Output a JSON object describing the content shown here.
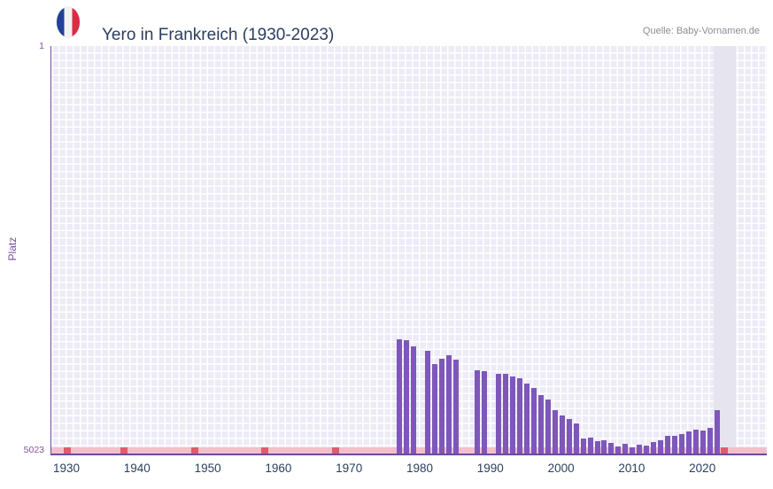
{
  "chart_data": {
    "type": "bar",
    "title": "Yero in Frankreich (1930-2023)",
    "source": "Quelle: Baby-Vornamen.de",
    "ylabel": "Platz",
    "y_axis": {
      "top_label": "1",
      "bottom_label": "5023",
      "min": 1,
      "max": 5023,
      "inverted": true
    },
    "x_ticks": [
      "1930",
      "1940",
      "1950",
      "1960",
      "1970",
      "1980",
      "1990",
      "2000",
      "2010",
      "2020"
    ],
    "x_range": [
      1927.75,
      2029
    ],
    "highlight_year": 2023,
    "no_data_marker_years": [
      1930,
      1938,
      1948,
      1958,
      1968,
      2023
    ],
    "grid": true,
    "legend": "none",
    "series": [
      {
        "year": 1977,
        "rank": 3610
      },
      {
        "year": 1978,
        "rank": 3630
      },
      {
        "year": 1979,
        "rank": 3700
      },
      {
        "year": 1981,
        "rank": 3760
      },
      {
        "year": 1982,
        "rank": 3915
      },
      {
        "year": 1983,
        "rank": 3860
      },
      {
        "year": 1984,
        "rank": 3810
      },
      {
        "year": 1985,
        "rank": 3870
      },
      {
        "year": 1988,
        "rank": 4000
      },
      {
        "year": 1989,
        "rank": 4010
      },
      {
        "year": 1991,
        "rank": 4040
      },
      {
        "year": 1992,
        "rank": 4045
      },
      {
        "year": 1993,
        "rank": 4070
      },
      {
        "year": 1994,
        "rank": 4100
      },
      {
        "year": 1995,
        "rank": 4160
      },
      {
        "year": 1996,
        "rank": 4215
      },
      {
        "year": 1997,
        "rank": 4300
      },
      {
        "year": 1998,
        "rank": 4360
      },
      {
        "year": 1999,
        "rank": 4490
      },
      {
        "year": 2000,
        "rank": 4550
      },
      {
        "year": 2001,
        "rank": 4600
      },
      {
        "year": 2002,
        "rank": 4655
      },
      {
        "year": 2003,
        "rank": 4840
      },
      {
        "year": 2004,
        "rank": 4830
      },
      {
        "year": 2005,
        "rank": 4870
      },
      {
        "year": 2006,
        "rank": 4860
      },
      {
        "year": 2007,
        "rank": 4890
      },
      {
        "year": 2008,
        "rank": 4940
      },
      {
        "year": 2009,
        "rank": 4905
      },
      {
        "year": 2010,
        "rank": 4950
      },
      {
        "year": 2011,
        "rank": 4910
      },
      {
        "year": 2012,
        "rank": 4930
      },
      {
        "year": 2013,
        "rank": 4880
      },
      {
        "year": 2014,
        "rank": 4855
      },
      {
        "year": 2015,
        "rank": 4810
      },
      {
        "year": 2016,
        "rank": 4800
      },
      {
        "year": 2017,
        "rank": 4780
      },
      {
        "year": 2018,
        "rank": 4755
      },
      {
        "year": 2019,
        "rank": 4730
      },
      {
        "year": 2020,
        "rank": 4740
      },
      {
        "year": 2021,
        "rank": 4710
      },
      {
        "year": 2022,
        "rank": 4490
      }
    ],
    "colors": {
      "bar": "#7e57ba",
      "baseline": "#f2bfcd",
      "marker": "#e05a70",
      "axis": "#6a4c9c",
      "plot_bg": "#ecebf6",
      "grid": "#ffffff",
      "highlight_band": "#e6e5ef",
      "title": "#2a3f5f",
      "tick": "#2a3f5f",
      "y_tick": "#8a4f9e",
      "axis_label": "#7a4aa0",
      "source": "#8c8c96"
    }
  }
}
